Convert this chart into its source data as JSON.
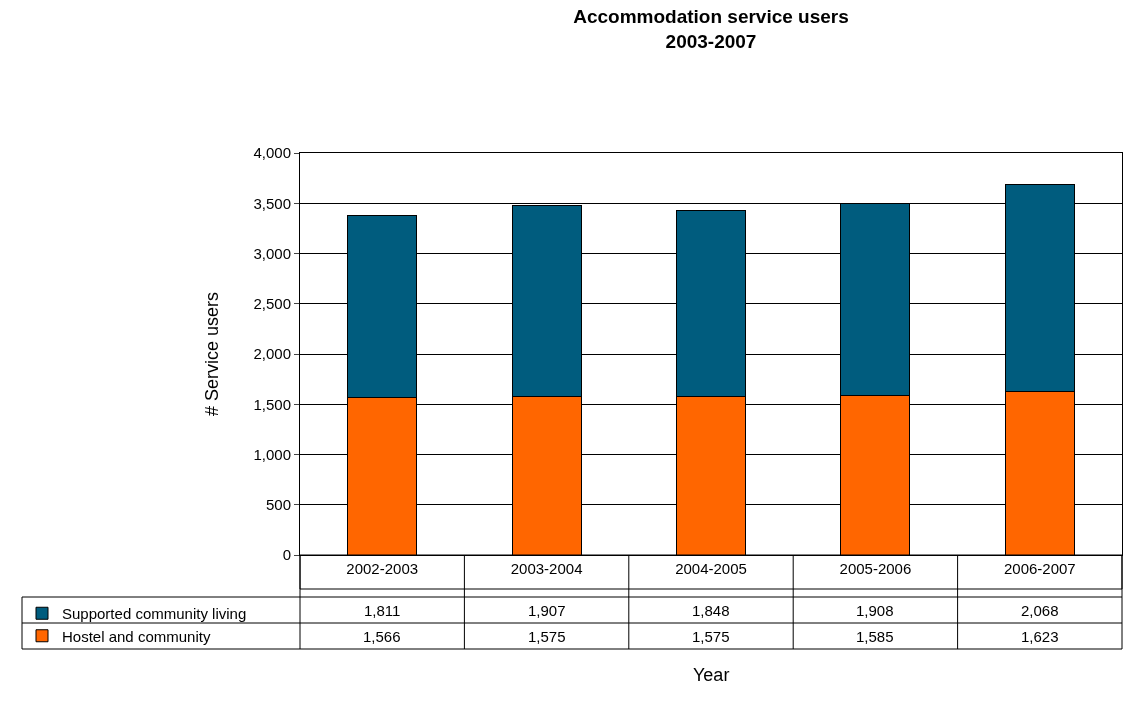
{
  "chart_data": {
    "type": "bar",
    "title": "Accommodation service users\n2003-2007",
    "xlabel": "Year",
    "ylabel": "# Service users",
    "categories": [
      "2002-2003",
      "2003-2004",
      "2004-2005",
      "2005-2006",
      "2006-2007"
    ],
    "stacked": true,
    "series": [
      {
        "name": "Hostel and community",
        "color": "#ff6600",
        "values": [
          1566,
          1575,
          1575,
          1585,
          1623
        ],
        "value_labels": [
          "1,566",
          "1,575",
          "1,575",
          "1,585",
          "1,623"
        ]
      },
      {
        "name": "Supported community living",
        "color": "#005c7e",
        "values": [
          1811,
          1907,
          1848,
          1908,
          2068
        ],
        "value_labels": [
          "1,811",
          "1,907",
          "1,848",
          "1,908",
          "2,068"
        ]
      }
    ],
    "ylim": [
      0,
      4000
    ],
    "yticks": [
      {
        "value": 0,
        "label": "0"
      },
      {
        "value": 500,
        "label": "500"
      },
      {
        "value": 1000,
        "label": "1,000"
      },
      {
        "value": 1500,
        "label": "1,500"
      },
      {
        "value": 2000,
        "label": "2,000"
      },
      {
        "value": 2500,
        "label": "2,500"
      },
      {
        "value": 3000,
        "label": "3,000"
      },
      {
        "value": 3500,
        "label": "3,500"
      },
      {
        "value": 4000,
        "label": "4,000"
      }
    ],
    "grid": "y",
    "legend": "bottom"
  }
}
